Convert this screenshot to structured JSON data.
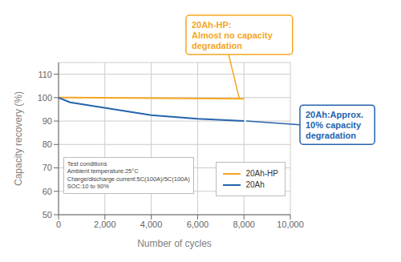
{
  "chart_data": {
    "type": "line",
    "xlabel": "Number of cycles",
    "ylabel": "Capacity recovery (%)",
    "xlim": [
      0,
      10000
    ],
    "ylim": [
      50,
      115
    ],
    "xticks": [
      0,
      {
        "value": 2000,
        "label": "2,000"
      },
      {
        "value": 4000,
        "label": "4,000"
      },
      {
        "value": 6000,
        "label": "6,000"
      },
      {
        "value": 8000,
        "label": "8,000"
      },
      {
        "value": 10000,
        "label": "10,000"
      }
    ],
    "yticks": [
      50,
      60,
      70,
      80,
      90,
      100,
      110
    ],
    "grid": true,
    "legend": "lower right",
    "series": [
      {
        "name": "20Ah-HP",
        "color": "#F5A623",
        "x": [
          0,
          500,
          8000
        ],
        "values": [
          100,
          100,
          99.5
        ]
      },
      {
        "name": "20Ah",
        "color": "#2464AE",
        "x": [
          0,
          500,
          4000,
          6000,
          8000
        ],
        "values": [
          100,
          98,
          92.5,
          91,
          90
        ]
      }
    ],
    "annotations": [
      {
        "text": "20Ah-HP:\nAlmost no capacity\ndegradation",
        "x": 7800,
        "y": 99.5,
        "color": "#F5A623"
      },
      {
        "text": "20Ah:Approx.\n10% capacity\ndegradation",
        "x": 8100,
        "y": 90,
        "color": "#2464AE"
      },
      {
        "text": "Test conditions\nAmbient temperature:25°C\nCharge/discharge current:5C(100A)/5C(100A)\nSOC:10 to 90%"
      }
    ]
  }
}
